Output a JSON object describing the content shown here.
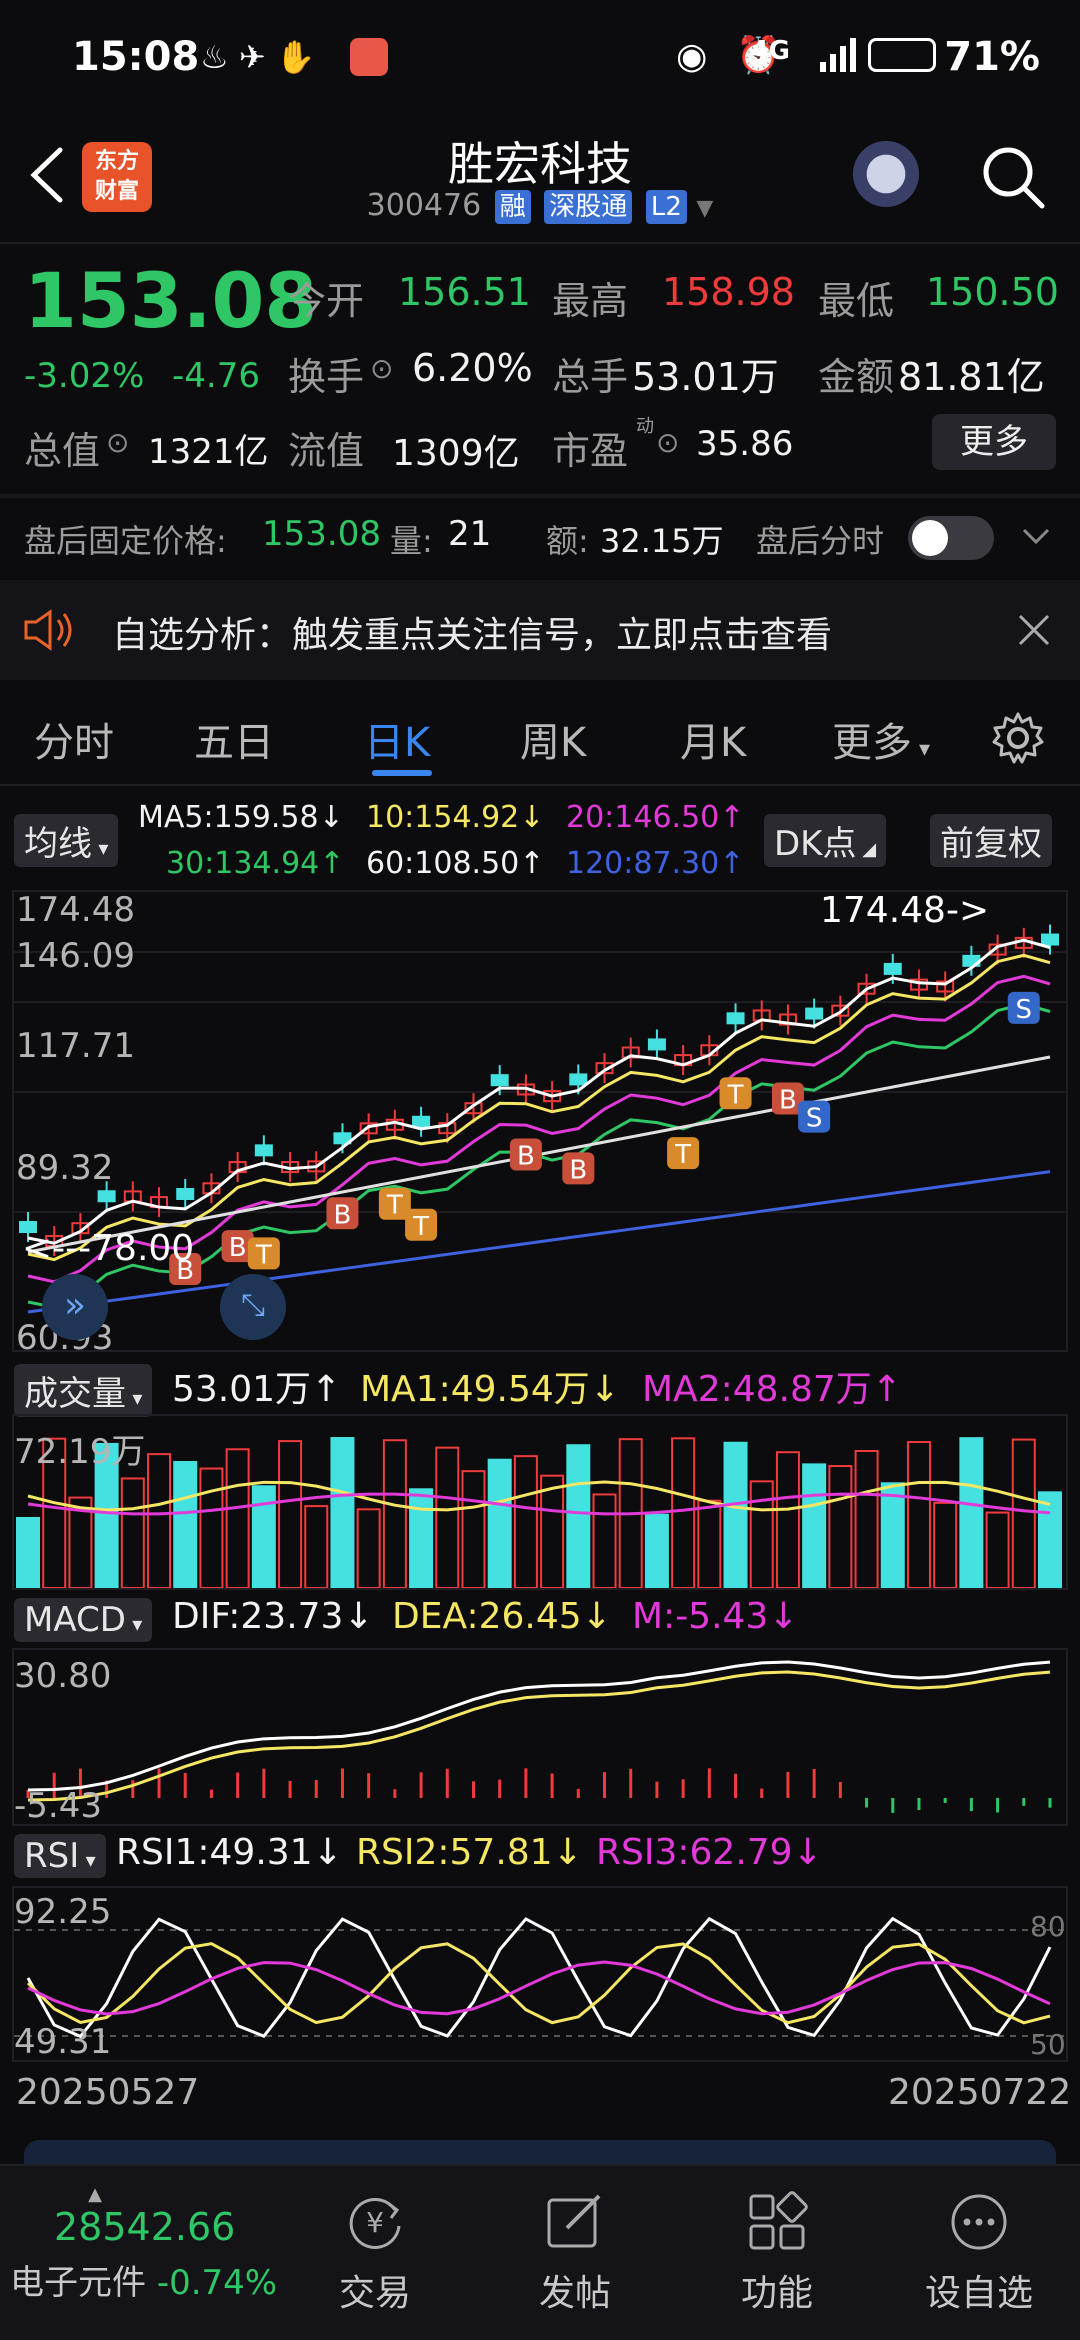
{
  "status_bar": {
    "time": "15:08",
    "network": "4G",
    "battery": "71%"
  },
  "header": {
    "logo_line1": "东方",
    "logo_line2": "财富",
    "title": "胜宏科技",
    "code": "300476",
    "tags": [
      "融",
      "深股通",
      "L2"
    ]
  },
  "quote": {
    "price": "153.08",
    "pct": "-3.02%",
    "chg": "-4.76",
    "open_label": "今开",
    "open": "156.51",
    "high_label": "最高",
    "high": "158.98",
    "low_label": "最低",
    "low": "150.50",
    "turnover_label": "换手",
    "turnover": "6.20%",
    "volume_label": "总手",
    "volume": "53.01万",
    "amount_label": "金额",
    "amount": "81.81亿",
    "mktcap_label": "总值",
    "mktcap": "1321亿",
    "float_label": "流值",
    "float": "1309亿",
    "pe_label": "市盈",
    "pe_sup": "动",
    "pe": "35.86",
    "more_label": "更多"
  },
  "after_hours": {
    "price_label": "盘后固定价格:",
    "price": "153.08",
    "vol_label": "量:",
    "vol": "21",
    "amt_label": "额:",
    "amt": "32.15万",
    "switch_label": "盘后分时"
  },
  "notice": {
    "text": "自选分析：触发重点关注信号，立即点击查看"
  },
  "tabs": [
    {
      "label": "分时"
    },
    {
      "label": "五日"
    },
    {
      "label": "日K"
    },
    {
      "label": "周K"
    },
    {
      "label": "月K"
    },
    {
      "label": "更多"
    }
  ],
  "ma_legend": {
    "selector": "均线",
    "ma5": "MA5:159.58↓",
    "ma10": "10:154.92↓",
    "ma20": "20:146.50↑",
    "ma30": "30:134.94↑",
    "ma60": "60:108.50↑",
    "ma120": "120:87.30↑",
    "dk_label": "DK点",
    "adjust_label": "前复权"
  },
  "kline": {
    "y_labels": [
      "174.48",
      "146.09",
      "117.71",
      "89.32",
      "60.93"
    ],
    "high_marker": "174.48->",
    "low_marker": "<---78.00",
    "signals": [
      "B",
      "B",
      "T",
      "B",
      "T",
      "T",
      "B",
      "B",
      "T",
      "T",
      "B",
      "S",
      "S"
    ]
  },
  "volume": {
    "selector": "成交量",
    "value": "53.01万↑",
    "ma1": "MA1:49.54万↓",
    "ma2": "MA2:48.87万↑",
    "y_label": "72.19万"
  },
  "macd": {
    "selector": "MACD",
    "dif": "DIF:23.73↓",
    "dea": "DEA:26.45↓",
    "m": "M:-5.43↓",
    "y_top": "30.80",
    "y_bottom": "-5.43"
  },
  "rsi": {
    "selector": "RSI",
    "rsi1": "RSI1:49.31↓",
    "rsi2": "RSI2:57.81↓",
    "rsi3": "RSI3:62.79↓",
    "y_top": "92.25",
    "y_bottom": "49.31",
    "ref_high": "80",
    "ref_low": "50"
  },
  "date_range": {
    "start": "20250527",
    "end": "20250722"
  },
  "bottom_bar": {
    "index_value": "28542.66",
    "index_name": "电子元件",
    "index_change": "-0.74%",
    "items": [
      {
        "label": "交易"
      },
      {
        "label": "发帖"
      },
      {
        "label": "功能"
      },
      {
        "label": "设自选"
      }
    ]
  },
  "colors": {
    "up": "#ef3b3b",
    "down": "#2fc766",
    "accent": "#3a86f0"
  }
}
